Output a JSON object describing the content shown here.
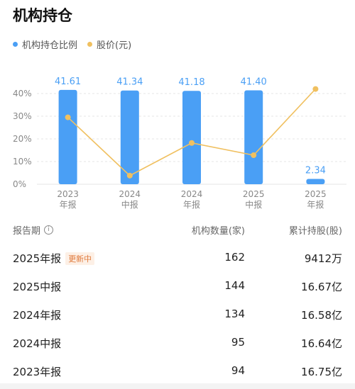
{
  "title": "机构持仓",
  "legend": [
    {
      "label": "机构持仓比例",
      "color": "#4a9ff5"
    },
    {
      "label": "股价(元)",
      "color": "#f0c060"
    }
  ],
  "chart_data": {
    "type": "bar",
    "categories": [
      [
        "2023",
        "年报"
      ],
      [
        "2024",
        "中报"
      ],
      [
        "2024",
        "年报"
      ],
      [
        "2025",
        "中报"
      ],
      [
        "2025",
        "年报"
      ]
    ],
    "series": [
      {
        "name": "机构持仓比例",
        "type": "bar",
        "values": [
          41.61,
          41.34,
          41.18,
          41.4,
          2.34
        ],
        "labels": [
          "41.61",
          "41.34",
          "41.18",
          "41.40",
          "2.34"
        ],
        "color": "#4a9ff5"
      },
      {
        "name": "股价(元)",
        "type": "line",
        "values": [
          29.5,
          3.8,
          18.2,
          12.8,
          42.0
        ],
        "color": "#f0c060"
      }
    ],
    "yticks": [
      "40%",
      "30%",
      "20%",
      "10%",
      "0%"
    ],
    "ylim": [
      0,
      45
    ],
    "grid": true
  },
  "table": {
    "headers": [
      "报告期",
      "机构数量(家)",
      "累计持股(股)"
    ],
    "info_icon": "info-icon",
    "rows": [
      {
        "period": "2025年报",
        "badge": "更新中",
        "count": "162",
        "shares": "9412万"
      },
      {
        "period": "2025中报",
        "badge": "",
        "count": "144",
        "shares": "16.67亿"
      },
      {
        "period": "2024年报",
        "badge": "",
        "count": "134",
        "shares": "16.58亿"
      },
      {
        "period": "2024中报",
        "badge": "",
        "count": "95",
        "shares": "16.64亿"
      },
      {
        "period": "2023年报",
        "badge": "",
        "count": "94",
        "shares": "16.75亿"
      }
    ]
  }
}
